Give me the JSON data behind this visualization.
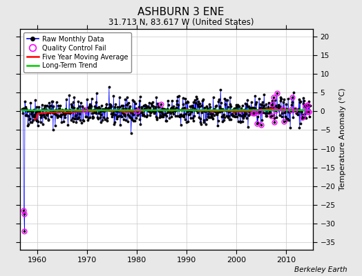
{
  "title": "ASHBURN 3 ENE",
  "subtitle": "31.713 N, 83.617 W (United States)",
  "ylabel": "Temperature Anomaly (°C)",
  "watermark": "Berkeley Earth",
  "ylim": [
    -37,
    22
  ],
  "yticks": [
    -35,
    -30,
    -25,
    -20,
    -15,
    -10,
    -5,
    0,
    5,
    10,
    15,
    20
  ],
  "xlim": [
    1956.5,
    2015.5
  ],
  "xticks": [
    1960,
    1970,
    1980,
    1990,
    2000,
    2010
  ],
  "x_start": 1957.0,
  "x_end": 2014.9,
  "bg_color": "#e8e8e8",
  "plot_bg": "#ffffff",
  "grid_color": "#c8c8c8",
  "raw_line_color": "#0000ff",
  "raw_dot_color": "#000000",
  "ma_color": "#ff0000",
  "trend_color": "#00cc00",
  "qc_color": "#ff00ff",
  "outlier_values": [
    -26.5,
    -27.5,
    -32.0
  ],
  "seed": 42
}
